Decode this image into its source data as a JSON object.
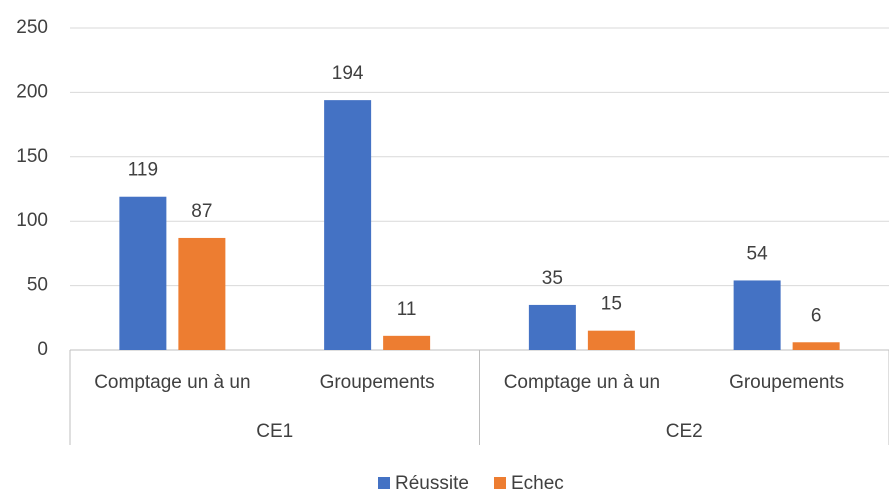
{
  "chart_data": {
    "type": "bar",
    "groups": [
      {
        "name": "CE1",
        "categories": [
          "Comptage un à un",
          "Groupements"
        ]
      },
      {
        "name": "CE2",
        "categories": [
          "Comptage un à un",
          "Groupements"
        ]
      }
    ],
    "series": [
      {
        "name": "Réussite",
        "color": "#4472c4",
        "values": [
          119,
          194,
          35,
          54
        ]
      },
      {
        "name": "Echec",
        "color": "#ed7d31",
        "values": [
          87,
          11,
          15,
          6
        ]
      }
    ],
    "ylim": [
      0,
      250
    ],
    "yticks": [
      0,
      50,
      100,
      150,
      200,
      250
    ],
    "grid": true,
    "legend": "bottom"
  }
}
